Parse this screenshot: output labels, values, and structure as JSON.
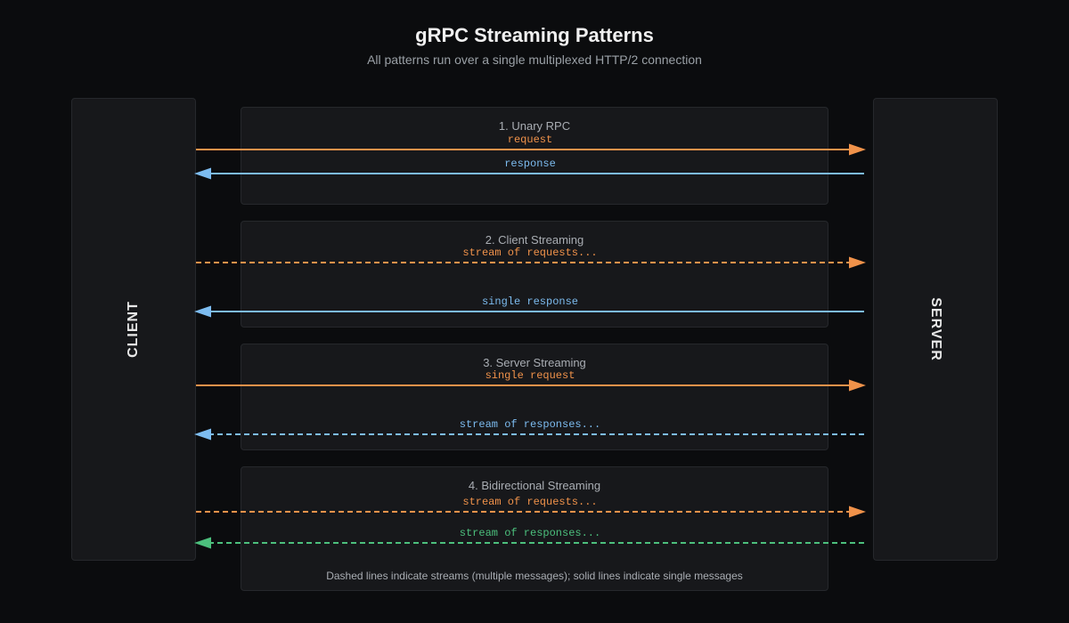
{
  "header": {
    "title": "gRPC Streaming Patterns",
    "subtitle": "All patterns run over a single multiplexed HTTP/2 connection"
  },
  "actors": {
    "client": "CLIENT",
    "server": "SERVER"
  },
  "colors": {
    "request": "#f0924a",
    "response": "#7dbcf0",
    "bidi_response": "#4cc07d"
  },
  "patterns": [
    {
      "title": "1. Unary RPC",
      "messages": [
        {
          "label": "request",
          "direction": "to-server",
          "style": "solid",
          "color": "#f0924a"
        },
        {
          "label": "response",
          "direction": "to-client",
          "style": "solid",
          "color": "#7dbcf0"
        }
      ]
    },
    {
      "title": "2. Client Streaming",
      "messages": [
        {
          "label": "stream of requests...",
          "direction": "to-server",
          "style": "dashed",
          "color": "#f0924a"
        },
        {
          "label": "single response",
          "direction": "to-client",
          "style": "solid",
          "color": "#7dbcf0"
        }
      ]
    },
    {
      "title": "3. Server Streaming",
      "messages": [
        {
          "label": "single request",
          "direction": "to-server",
          "style": "solid",
          "color": "#f0924a"
        },
        {
          "label": "stream of responses...",
          "direction": "to-client",
          "style": "dashed",
          "color": "#7dbcf0"
        }
      ]
    },
    {
      "title": "4. Bidirectional Streaming",
      "messages": [
        {
          "label": "stream of requests...",
          "direction": "to-server",
          "style": "dashed",
          "color": "#f0924a"
        },
        {
          "label": "stream of responses...",
          "direction": "to-client",
          "style": "dashed",
          "color": "#4cc07d"
        }
      ]
    }
  ],
  "footnote": "Dashed lines indicate streams (multiple messages); solid lines indicate single messages"
}
